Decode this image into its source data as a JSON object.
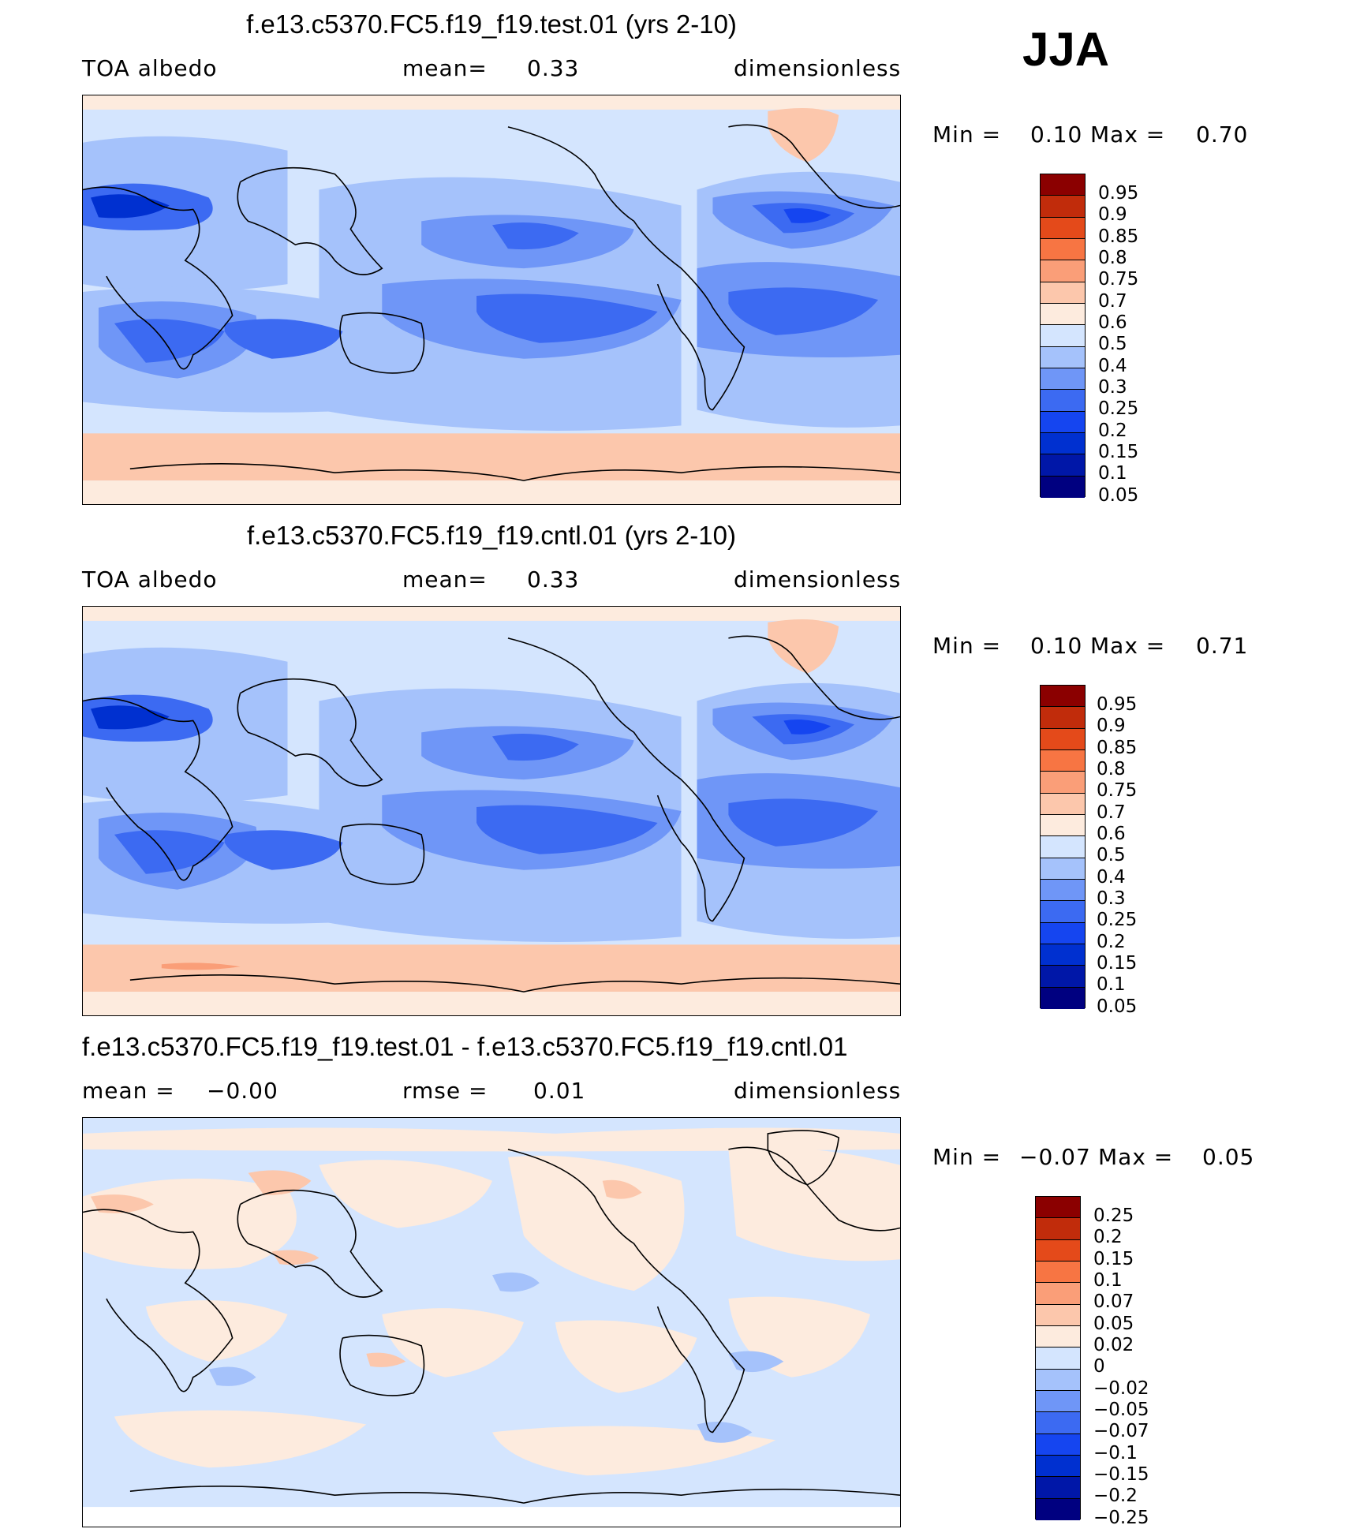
{
  "season": "JJA",
  "colors": {
    "abs": [
      "#000080",
      "#0017a8",
      "#0030d0",
      "#1545f0",
      "#3c6af2",
      "#6f96f7",
      "#a5c2fb",
      "#d4e5fe",
      "#fdebde",
      "#fcc7ac",
      "#fa9e78",
      "#f77543",
      "#e44a1a",
      "#c12c0b",
      "#8b0000"
    ],
    "diff": [
      "#000080",
      "#0017a8",
      "#0030d0",
      "#1545f0",
      "#3c6af2",
      "#6f96f7",
      "#a5c2fb",
      "#d4e5fe",
      "#fdebde",
      "#fcc7ac",
      "#fa9e78",
      "#f77543",
      "#e44a1a",
      "#c12c0b",
      "#8b0000"
    ]
  },
  "panels": [
    {
      "title": "f.e13.c5370.FC5.f19_f19.test.01 (yrs 2-10)",
      "left_label": "TOA albedo",
      "mean_label": "mean=",
      "mean_value": "0.33",
      "units": "dimensionless",
      "min_label": "Min =",
      "min_value": "0.10",
      "max_label": "Max =",
      "max_value": "0.70",
      "colorbar_labels": [
        "0.95",
        "0.9",
        "0.85",
        "0.8",
        "0.75",
        "0.7",
        "0.6",
        "0.5",
        "0.4",
        "0.3",
        "0.25",
        "0.2",
        "0.15",
        "0.1",
        "0.05"
      ]
    },
    {
      "title": "f.e13.c5370.FC5.f19_f19.cntl.01 (yrs 2-10)",
      "left_label": "TOA albedo",
      "mean_label": "mean=",
      "mean_value": "0.33",
      "units": "dimensionless",
      "min_label": "Min =",
      "min_value": "0.10",
      "max_label": "Max =",
      "max_value": "0.71",
      "colorbar_labels": [
        "0.95",
        "0.9",
        "0.85",
        "0.8",
        "0.75",
        "0.7",
        "0.6",
        "0.5",
        "0.4",
        "0.3",
        "0.25",
        "0.2",
        "0.15",
        "0.1",
        "0.05"
      ]
    },
    {
      "title": "f.e13.c5370.FC5.f19_f19.test.01 - f.e13.c5370.FC5.f19_f19.cntl.01",
      "left_label": "mean =",
      "mean_label": "−0.00",
      "rmse_label": "rmse =",
      "rmse_value": "0.01",
      "units": "dimensionless",
      "min_label": "Min =",
      "min_value": "−0.07",
      "max_label": "Max =",
      "max_value": "0.05",
      "colorbar_labels": [
        "0.25",
        "0.2",
        "0.15",
        "0.1",
        "0.07",
        "0.05",
        "0.02",
        "0",
        "−0.02",
        "−0.05",
        "−0.07",
        "−0.1",
        "−0.15",
        "−0.2",
        "−0.25"
      ]
    }
  ]
}
